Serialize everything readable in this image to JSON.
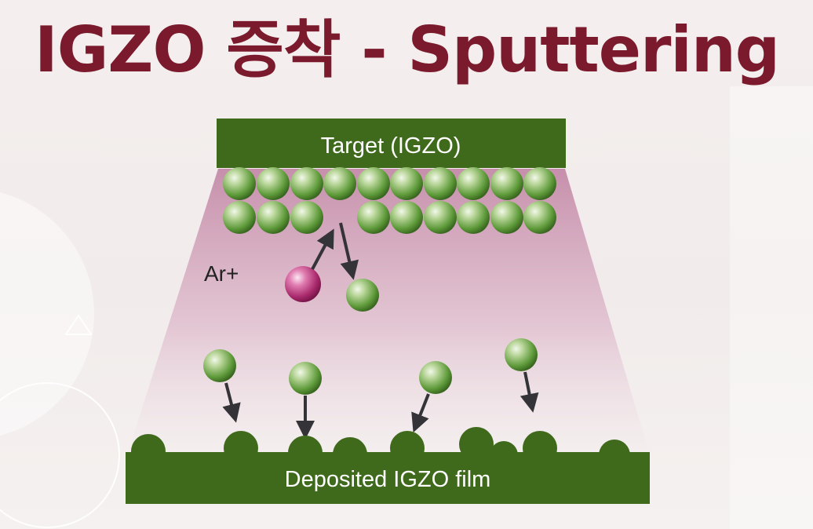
{
  "title": "IGZO 증착 - Sputtering",
  "diagram": {
    "target_label": "Target (IGZO)",
    "film_label": "Deposited IGZO film",
    "ion_label": "Ar+"
  },
  "colors": {
    "title": "#7a1a2c",
    "target_bar": "#3f6a1c",
    "atom": "#5e9a3a",
    "ion": "#a8296c",
    "plasma": "#c48aa8"
  }
}
